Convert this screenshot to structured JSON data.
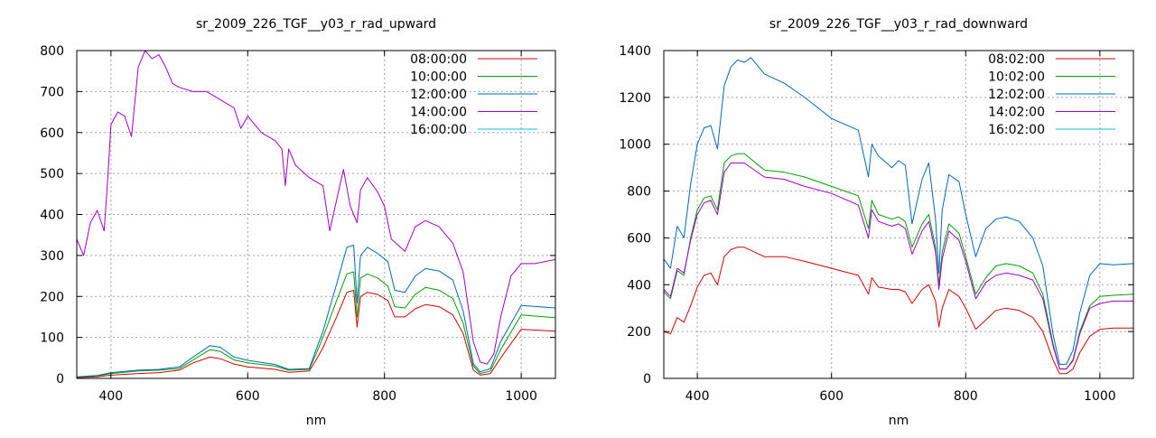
{
  "chart_data": [
    {
      "type": "line",
      "title": "sr_2009_226_TGF__y03_r_rad_upward",
      "xlabel": "nm",
      "ylabel": "",
      "xlim": [
        350,
        1050
      ],
      "ylim": [
        0,
        800
      ],
      "xticks": [
        400,
        600,
        800,
        1000
      ],
      "yticks": [
        0,
        100,
        200,
        300,
        400,
        500,
        600,
        700,
        800
      ],
      "grid": true,
      "legend": "top-right",
      "series": [
        {
          "name": "08:00:00",
          "color": "#d60000",
          "x": [
            350,
            380,
            400,
            440,
            470,
            500,
            520,
            545,
            560,
            580,
            600,
            640,
            660,
            690,
            700,
            710,
            730,
            745,
            755,
            760,
            765,
            775,
            790,
            805,
            815,
            830,
            845,
            860,
            880,
            900,
            915,
            930,
            940,
            955,
            970,
            1000,
            1050
          ],
          "y": [
            2,
            4,
            8,
            12,
            14,
            20,
            38,
            52,
            48,
            35,
            28,
            22,
            15,
            18,
            45,
            75,
            150,
            210,
            215,
            125,
            200,
            210,
            205,
            190,
            150,
            150,
            170,
            180,
            175,
            155,
            110,
            20,
            8,
            12,
            50,
            120,
            115
          ]
        },
        {
          "name": "10:00:00",
          "color": "#00a000",
          "x": [
            350,
            380,
            400,
            440,
            470,
            500,
            520,
            545,
            560,
            580,
            600,
            640,
            660,
            690,
            700,
            710,
            730,
            745,
            755,
            760,
            765,
            775,
            790,
            805,
            815,
            830,
            845,
            860,
            880,
            900,
            915,
            930,
            940,
            955,
            970,
            1000,
            1050
          ],
          "y": [
            3,
            6,
            12,
            18,
            20,
            24,
            45,
            70,
            66,
            45,
            38,
            30,
            20,
            22,
            60,
            100,
            190,
            255,
            260,
            150,
            245,
            255,
            245,
            225,
            175,
            172,
            205,
            222,
            215,
            195,
            135,
            30,
            12,
            18,
            70,
            155,
            148
          ]
        },
        {
          "name": "12:00:00",
          "color": "#0068c0",
          "x": [
            350,
            380,
            400,
            440,
            470,
            500,
            520,
            545,
            560,
            580,
            600,
            640,
            660,
            690,
            700,
            710,
            730,
            745,
            755,
            760,
            765,
            775,
            790,
            805,
            815,
            830,
            845,
            860,
            880,
            900,
            915,
            930,
            940,
            955,
            970,
            1000,
            1050
          ],
          "y": [
            4,
            7,
            14,
            20,
            22,
            28,
            52,
            80,
            76,
            52,
            44,
            34,
            22,
            24,
            70,
            115,
            230,
            320,
            325,
            185,
            300,
            320,
            305,
            285,
            215,
            210,
            250,
            268,
            262,
            240,
            165,
            36,
            16,
            24,
            90,
            178,
            172
          ]
        },
        {
          "name": "14:00:00",
          "color": "#a000c8",
          "x": [
            350,
            360,
            370,
            380,
            390,
            395,
            400,
            410,
            420,
            430,
            440,
            450,
            460,
            470,
            480,
            490,
            500,
            520,
            540,
            560,
            580,
            590,
            600,
            620,
            640,
            650,
            655,
            660,
            670,
            690,
            700,
            710,
            720,
            740,
            750,
            755,
            760,
            765,
            775,
            790,
            800,
            810,
            830,
            845,
            860,
            880,
            900,
            915,
            930,
            940,
            950,
            960,
            970,
            985,
            1000,
            1020,
            1050
          ],
          "y": [
            340,
            300,
            380,
            410,
            360,
            480,
            620,
            650,
            640,
            590,
            760,
            800,
            780,
            790,
            760,
            720,
            710,
            700,
            700,
            680,
            660,
            610,
            640,
            600,
            580,
            560,
            470,
            560,
            520,
            490,
            480,
            470,
            360,
            510,
            420,
            400,
            380,
            460,
            490,
            455,
            420,
            340,
            310,
            370,
            385,
            370,
            330,
            260,
            90,
            40,
            35,
            60,
            150,
            250,
            280,
            280,
            290
          ]
        },
        {
          "name": "16:00:00",
          "color": "#00c0e0",
          "x": [],
          "y": []
        }
      ]
    },
    {
      "type": "line",
      "title": "sr_2009_226_TGF__y03_r_rad_downward",
      "xlabel": "nm",
      "ylabel": "",
      "xlim": [
        350,
        1050
      ],
      "ylim": [
        0,
        1400
      ],
      "xticks": [
        400,
        600,
        800,
        1000
      ],
      "yticks": [
        0,
        200,
        400,
        600,
        800,
        1000,
        1200,
        1400
      ],
      "grid": true,
      "legend": "top-right",
      "series": [
        {
          "name": "08:02:00",
          "color": "#d60000",
          "x": [
            350,
            360,
            370,
            380,
            390,
            400,
            410,
            420,
            430,
            440,
            450,
            460,
            470,
            500,
            530,
            560,
            600,
            640,
            655,
            660,
            670,
            690,
            700,
            710,
            720,
            735,
            745,
            755,
            760,
            765,
            775,
            790,
            800,
            815,
            830,
            845,
            860,
            880,
            900,
            915,
            930,
            940,
            950,
            960,
            970,
            985,
            1000,
            1020,
            1050
          ],
          "y": [
            200,
            190,
            260,
            240,
            310,
            390,
            440,
            450,
            400,
            520,
            550,
            560,
            560,
            520,
            520,
            500,
            470,
            440,
            360,
            430,
            390,
            380,
            380,
            370,
            320,
            380,
            400,
            330,
            220,
            300,
            380,
            350,
            300,
            210,
            250,
            290,
            300,
            290,
            260,
            200,
            80,
            20,
            20,
            40,
            110,
            180,
            210,
            215,
            215
          ]
        },
        {
          "name": "10:02:00",
          "color": "#00a000",
          "x": [
            350,
            360,
            370,
            380,
            390,
            400,
            410,
            420,
            430,
            440,
            450,
            460,
            470,
            500,
            530,
            560,
            600,
            640,
            655,
            660,
            670,
            690,
            700,
            710,
            720,
            735,
            745,
            755,
            760,
            765,
            775,
            790,
            800,
            815,
            830,
            845,
            860,
            880,
            900,
            915,
            930,
            940,
            950,
            960,
            970,
            985,
            1000,
            1020,
            1050
          ],
          "y": [
            370,
            340,
            460,
            440,
            600,
            720,
            770,
            780,
            720,
            920,
            950,
            960,
            960,
            890,
            880,
            860,
            820,
            780,
            640,
            760,
            700,
            680,
            690,
            670,
            560,
            660,
            700,
            560,
            400,
            540,
            660,
            620,
            520,
            360,
            430,
            480,
            490,
            480,
            450,
            360,
            150,
            40,
            40,
            80,
            200,
            310,
            350,
            355,
            360
          ]
        },
        {
          "name": "12:02:00",
          "color": "#0068c0",
          "x": [
            350,
            360,
            370,
            380,
            390,
            400,
            410,
            420,
            430,
            440,
            450,
            460,
            470,
            480,
            500,
            530,
            560,
            600,
            640,
            655,
            660,
            670,
            690,
            700,
            710,
            720,
            735,
            745,
            755,
            760,
            765,
            775,
            790,
            800,
            815,
            830,
            845,
            860,
            880,
            900,
            915,
            930,
            940,
            950,
            960,
            970,
            985,
            1000,
            1020,
            1050
          ],
          "y": [
            510,
            470,
            650,
            600,
            830,
            1000,
            1070,
            1080,
            980,
            1250,
            1330,
            1360,
            1350,
            1370,
            1300,
            1260,
            1200,
            1110,
            1060,
            860,
            1000,
            950,
            900,
            930,
            910,
            660,
            850,
            920,
            680,
            450,
            720,
            870,
            840,
            700,
            520,
            640,
            680,
            690,
            670,
            600,
            480,
            190,
            60,
            60,
            120,
            280,
            440,
            490,
            485,
            490
          ]
        },
        {
          "name": "14:02:00",
          "color": "#a000c8",
          "x": [
            350,
            360,
            370,
            380,
            390,
            400,
            410,
            420,
            430,
            440,
            450,
            460,
            470,
            500,
            530,
            560,
            600,
            640,
            655,
            660,
            670,
            690,
            700,
            710,
            720,
            735,
            745,
            755,
            760,
            765,
            775,
            790,
            800,
            815,
            830,
            845,
            860,
            880,
            900,
            915,
            930,
            940,
            950,
            960,
            970,
            985,
            1000,
            1020,
            1050
          ],
          "y": [
            380,
            350,
            470,
            450,
            590,
            700,
            750,
            760,
            700,
            880,
            920,
            920,
            920,
            860,
            850,
            820,
            790,
            740,
            600,
            720,
            670,
            650,
            660,
            640,
            530,
            630,
            670,
            540,
            380,
            510,
            630,
            590,
            500,
            340,
            410,
            440,
            450,
            440,
            420,
            340,
            140,
            40,
            40,
            75,
            190,
            300,
            320,
            330,
            330
          ]
        },
        {
          "name": "16:02:00",
          "color": "#00c0e0",
          "x": [],
          "y": []
        }
      ]
    }
  ]
}
